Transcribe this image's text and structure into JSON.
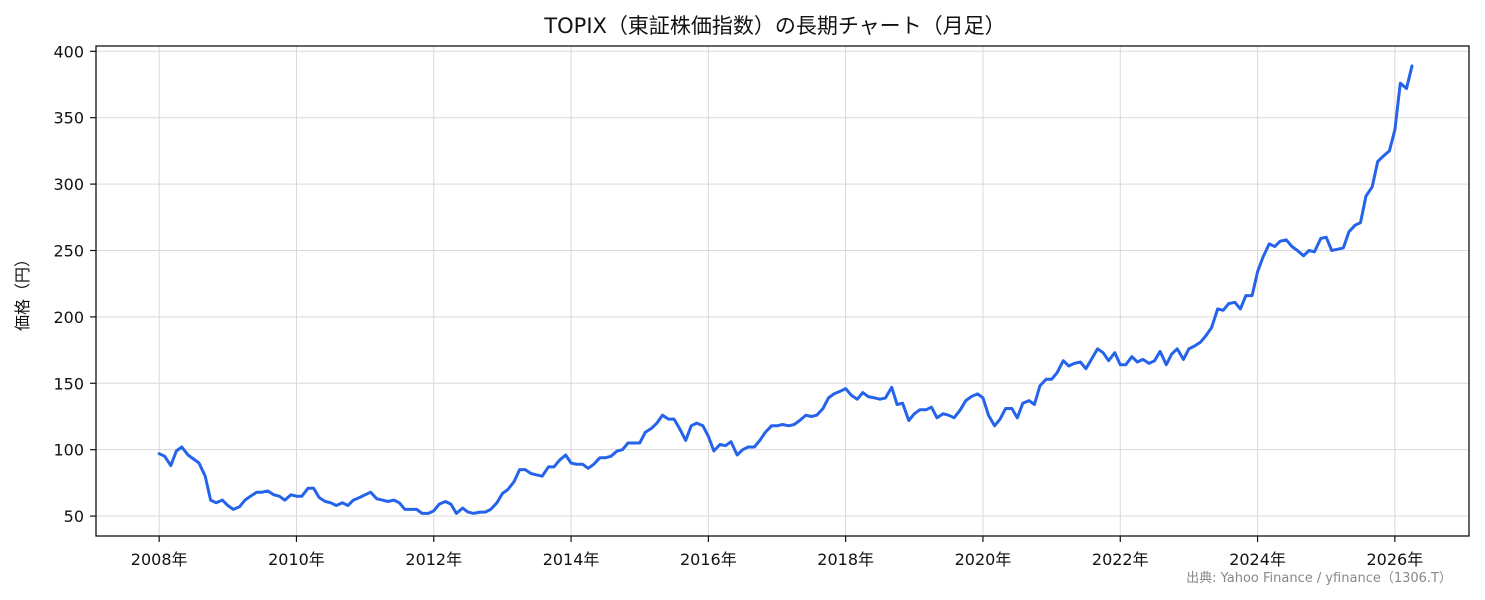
{
  "chart_data": {
    "type": "line",
    "title": "TOPIX（東証株価指数）の長期チャート（月足）",
    "ylabel": "価格（円）",
    "xlabel": "",
    "source": "出典: Yahoo Finance / yfinance（1306.T）",
    "line_color": "#2563eb",
    "grid": true,
    "xlim": [
      2007.08,
      2027.08
    ],
    "ylim": [
      35,
      404
    ],
    "xticks": [
      {
        "value": 2008,
        "label": "2008年"
      },
      {
        "value": 2010,
        "label": "2010年"
      },
      {
        "value": 2012,
        "label": "2012年"
      },
      {
        "value": 2014,
        "label": "2014年"
      },
      {
        "value": 2016,
        "label": "2016年"
      },
      {
        "value": 2018,
        "label": "2018年"
      },
      {
        "value": 2020,
        "label": "2020年"
      },
      {
        "value": 2022,
        "label": "2022年"
      },
      {
        "value": 2024,
        "label": "2024年"
      },
      {
        "value": 2026,
        "label": "2026年"
      }
    ],
    "yticks": [
      {
        "value": 50,
        "label": "50"
      },
      {
        "value": 100,
        "label": "100"
      },
      {
        "value": 150,
        "label": "150"
      },
      {
        "value": 200,
        "label": "200"
      },
      {
        "value": 250,
        "label": "250"
      },
      {
        "value": 300,
        "label": "300"
      },
      {
        "value": 350,
        "label": "350"
      },
      {
        "value": 400,
        "label": "400"
      }
    ],
    "series": [
      {
        "points": [
          [
            2008.0,
            97
          ],
          [
            2008.08,
            95
          ],
          [
            2008.17,
            88
          ],
          [
            2008.25,
            99
          ],
          [
            2008.33,
            102
          ],
          [
            2008.42,
            96
          ],
          [
            2008.5,
            93
          ],
          [
            2008.58,
            90
          ],
          [
            2008.67,
            80
          ],
          [
            2008.75,
            62
          ],
          [
            2008.83,
            60
          ],
          [
            2008.92,
            62
          ],
          [
            2009.0,
            58
          ],
          [
            2009.08,
            55
          ],
          [
            2009.17,
            57
          ],
          [
            2009.25,
            62
          ],
          [
            2009.33,
            65
          ],
          [
            2009.42,
            68
          ],
          [
            2009.5,
            68
          ],
          [
            2009.58,
            69
          ],
          [
            2009.67,
            66
          ],
          [
            2009.75,
            65
          ],
          [
            2009.83,
            62
          ],
          [
            2009.92,
            66
          ],
          [
            2010.0,
            65
          ],
          [
            2010.08,
            65
          ],
          [
            2010.17,
            71
          ],
          [
            2010.25,
            71
          ],
          [
            2010.33,
            64
          ],
          [
            2010.42,
            61
          ],
          [
            2010.5,
            60
          ],
          [
            2010.58,
            58
          ],
          [
            2010.67,
            60
          ],
          [
            2010.75,
            58
          ],
          [
            2010.83,
            62
          ],
          [
            2010.92,
            64
          ],
          [
            2011.0,
            66
          ],
          [
            2011.08,
            68
          ],
          [
            2011.17,
            63
          ],
          [
            2011.25,
            62
          ],
          [
            2011.33,
            61
          ],
          [
            2011.42,
            62
          ],
          [
            2011.5,
            60
          ],
          [
            2011.58,
            55
          ],
          [
            2011.67,
            55
          ],
          [
            2011.75,
            55
          ],
          [
            2011.83,
            52
          ],
          [
            2011.92,
            52
          ],
          [
            2012.0,
            54
          ],
          [
            2012.08,
            59
          ],
          [
            2012.17,
            61
          ],
          [
            2012.25,
            59
          ],
          [
            2012.33,
            52
          ],
          [
            2012.42,
            56
          ],
          [
            2012.5,
            53
          ],
          [
            2012.58,
            52
          ],
          [
            2012.67,
            53
          ],
          [
            2012.75,
            53
          ],
          [
            2012.83,
            55
          ],
          [
            2012.92,
            60
          ],
          [
            2013.0,
            67
          ],
          [
            2013.08,
            70
          ],
          [
            2013.17,
            76
          ],
          [
            2013.25,
            85
          ],
          [
            2013.33,
            85
          ],
          [
            2013.42,
            82
          ],
          [
            2013.5,
            81
          ],
          [
            2013.58,
            80
          ],
          [
            2013.67,
            87
          ],
          [
            2013.75,
            87
          ],
          [
            2013.83,
            92
          ],
          [
            2013.92,
            96
          ],
          [
            2014.0,
            90
          ],
          [
            2014.08,
            89
          ],
          [
            2014.17,
            89
          ],
          [
            2014.25,
            86
          ],
          [
            2014.33,
            89
          ],
          [
            2014.42,
            94
          ],
          [
            2014.5,
            94
          ],
          [
            2014.58,
            95
          ],
          [
            2014.67,
            99
          ],
          [
            2014.75,
            100
          ],
          [
            2014.83,
            105
          ],
          [
            2014.92,
            105
          ],
          [
            2015.0,
            105
          ],
          [
            2015.08,
            113
          ],
          [
            2015.17,
            116
          ],
          [
            2015.25,
            120
          ],
          [
            2015.33,
            126
          ],
          [
            2015.42,
            123
          ],
          [
            2015.5,
            123
          ],
          [
            2015.58,
            116
          ],
          [
            2015.67,
            107
          ],
          [
            2015.75,
            118
          ],
          [
            2015.83,
            120
          ],
          [
            2015.92,
            118
          ],
          [
            2016.0,
            110
          ],
          [
            2016.08,
            99
          ],
          [
            2016.17,
            104
          ],
          [
            2016.25,
            103
          ],
          [
            2016.33,
            106
          ],
          [
            2016.42,
            96
          ],
          [
            2016.5,
            100
          ],
          [
            2016.58,
            102
          ],
          [
            2016.67,
            102
          ],
          [
            2016.75,
            107
          ],
          [
            2016.83,
            113
          ],
          [
            2016.92,
            118
          ],
          [
            2017.0,
            118
          ],
          [
            2017.08,
            119
          ],
          [
            2017.17,
            118
          ],
          [
            2017.25,
            119
          ],
          [
            2017.33,
            122
          ],
          [
            2017.42,
            126
          ],
          [
            2017.5,
            125
          ],
          [
            2017.58,
            126
          ],
          [
            2017.67,
            131
          ],
          [
            2017.75,
            139
          ],
          [
            2017.83,
            142
          ],
          [
            2017.92,
            144
          ],
          [
            2018.0,
            146
          ],
          [
            2018.08,
            141
          ],
          [
            2018.17,
            138
          ],
          [
            2018.25,
            143
          ],
          [
            2018.33,
            140
          ],
          [
            2018.42,
            139
          ],
          [
            2018.5,
            138
          ],
          [
            2018.58,
            139
          ],
          [
            2018.67,
            147
          ],
          [
            2018.75,
            134
          ],
          [
            2018.83,
            135
          ],
          [
            2018.92,
            122
          ],
          [
            2019.0,
            127
          ],
          [
            2019.08,
            130
          ],
          [
            2019.17,
            130
          ],
          [
            2019.25,
            132
          ],
          [
            2019.33,
            124
          ],
          [
            2019.42,
            127
          ],
          [
            2019.5,
            126
          ],
          [
            2019.58,
            124
          ],
          [
            2019.67,
            130
          ],
          [
            2019.75,
            137
          ],
          [
            2019.83,
            140
          ],
          [
            2019.92,
            142
          ],
          [
            2020.0,
            139
          ],
          [
            2020.08,
            126
          ],
          [
            2020.17,
            118
          ],
          [
            2020.25,
            123
          ],
          [
            2020.33,
            131
          ],
          [
            2020.42,
            131
          ],
          [
            2020.5,
            124
          ],
          [
            2020.58,
            135
          ],
          [
            2020.67,
            137
          ],
          [
            2020.75,
            134
          ],
          [
            2020.83,
            148
          ],
          [
            2020.92,
            153
          ],
          [
            2021.0,
            153
          ],
          [
            2021.08,
            158
          ],
          [
            2021.17,
            167
          ],
          [
            2021.25,
            163
          ],
          [
            2021.33,
            165
          ],
          [
            2021.42,
            166
          ],
          [
            2021.5,
            161
          ],
          [
            2021.58,
            168
          ],
          [
            2021.67,
            176
          ],
          [
            2021.75,
            173
          ],
          [
            2021.83,
            167
          ],
          [
            2021.92,
            173
          ],
          [
            2022.0,
            164
          ],
          [
            2022.08,
            164
          ],
          [
            2022.17,
            170
          ],
          [
            2022.25,
            166
          ],
          [
            2022.33,
            168
          ],
          [
            2022.42,
            165
          ],
          [
            2022.5,
            167
          ],
          [
            2022.58,
            174
          ],
          [
            2022.67,
            164
          ],
          [
            2022.75,
            172
          ],
          [
            2022.83,
            176
          ],
          [
            2022.92,
            168
          ],
          [
            2023.0,
            176
          ],
          [
            2023.08,
            178
          ],
          [
            2023.17,
            181
          ],
          [
            2023.25,
            186
          ],
          [
            2023.33,
            192
          ],
          [
            2023.42,
            206
          ],
          [
            2023.5,
            205
          ],
          [
            2023.58,
            210
          ],
          [
            2023.67,
            211
          ],
          [
            2023.75,
            206
          ],
          [
            2023.83,
            216
          ],
          [
            2023.92,
            216
          ],
          [
            2024.0,
            234
          ],
          [
            2024.08,
            245
          ],
          [
            2024.17,
            255
          ],
          [
            2024.25,
            253
          ],
          [
            2024.33,
            257
          ],
          [
            2024.42,
            258
          ],
          [
            2024.5,
            253
          ],
          [
            2024.58,
            250
          ],
          [
            2024.67,
            246
          ],
          [
            2024.75,
            250
          ],
          [
            2024.83,
            249
          ],
          [
            2024.92,
            259
          ],
          [
            2025.0,
            260
          ],
          [
            2025.08,
            250
          ],
          [
            2025.17,
            251
          ],
          [
            2025.25,
            252
          ],
          [
            2025.33,
            264
          ],
          [
            2025.42,
            269
          ],
          [
            2025.5,
            271
          ],
          [
            2025.58,
            291
          ],
          [
            2025.67,
            298
          ],
          [
            2025.75,
            317
          ],
          [
            2025.83,
            321
          ],
          [
            2025.92,
            325
          ],
          [
            2026.0,
            341
          ],
          [
            2026.08,
            376
          ],
          [
            2026.17,
            372
          ],
          [
            2026.25,
            389
          ]
        ]
      }
    ]
  }
}
